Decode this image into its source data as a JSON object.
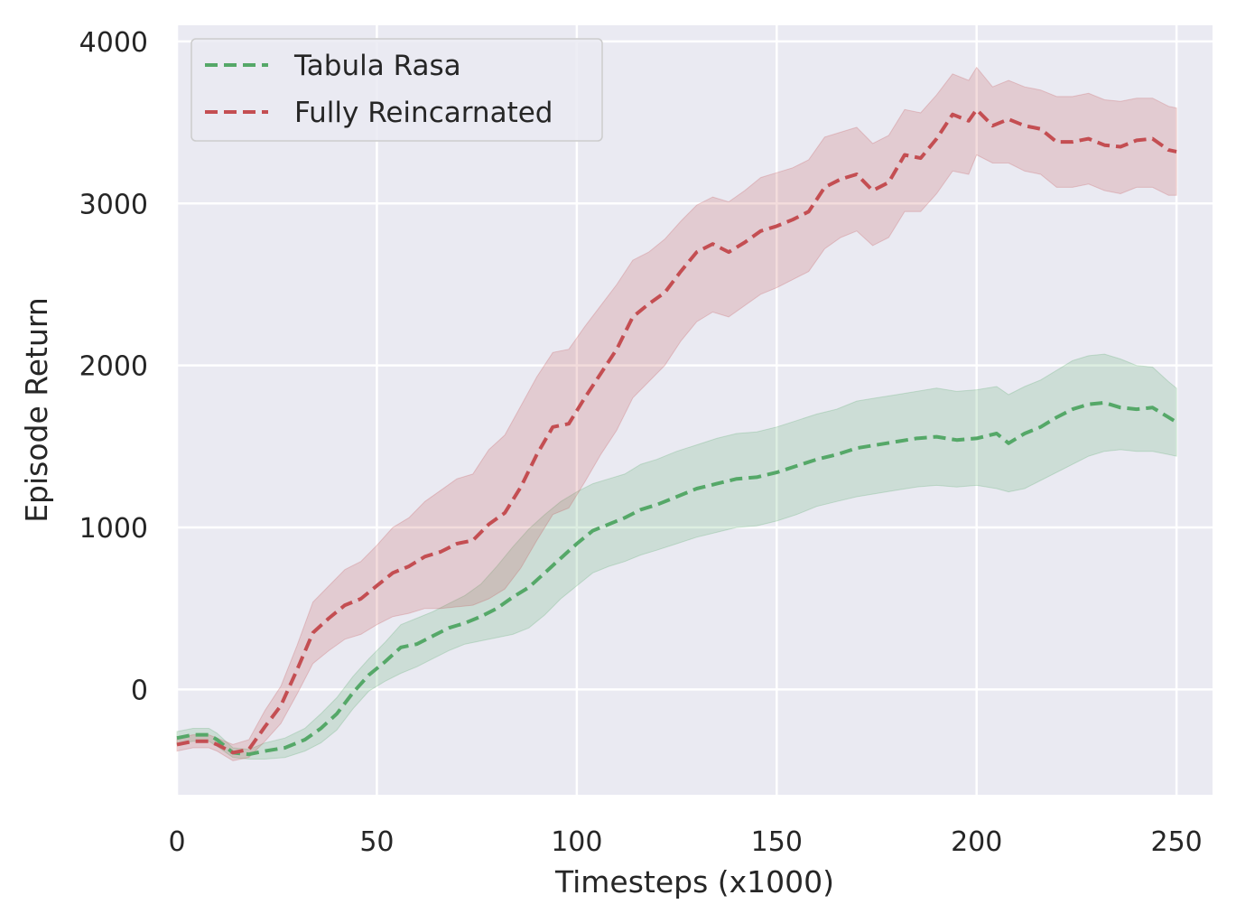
{
  "chart_data": {
    "type": "line",
    "xlabel": "Timesteps (x1000)",
    "ylabel": "Episode Return",
    "xlim": [
      0,
      259
    ],
    "ylim": [
      -650,
      4100
    ],
    "xticks": [
      0,
      50,
      100,
      150,
      200,
      250
    ],
    "yticks": [
      0,
      1000,
      2000,
      3000,
      4000
    ],
    "grid": true,
    "legend_position": "top-left",
    "background": "#eaeaf2",
    "series": [
      {
        "name": "Tabula Rasa",
        "color": "#55a868",
        "style": "dashed",
        "x": [
          0,
          4,
          8,
          10,
          14,
          18,
          22,
          27,
          32,
          36,
          40,
          44,
          48,
          52,
          56,
          60,
          64,
          68,
          72,
          76,
          80,
          84,
          88,
          92,
          96,
          100,
          104,
          108,
          112,
          116,
          120,
          125,
          130,
          135,
          140,
          145,
          150,
          155,
          160,
          165,
          170,
          175,
          180,
          185,
          190,
          195,
          200,
          205,
          208,
          212,
          216,
          220,
          224,
          228,
          232,
          236,
          240,
          244,
          248,
          250
        ],
        "mean": [
          -300,
          -280,
          -280,
          -310,
          -390,
          -400,
          -380,
          -360,
          -310,
          -240,
          -150,
          -20,
          90,
          170,
          260,
          280,
          330,
          380,
          410,
          450,
          500,
          570,
          630,
          720,
          810,
          900,
          980,
          1020,
          1060,
          1110,
          1140,
          1190,
          1240,
          1270,
          1300,
          1310,
          1340,
          1380,
          1420,
          1450,
          1490,
          1510,
          1530,
          1550,
          1560,
          1540,
          1550,
          1580,
          1520,
          1580,
          1620,
          1680,
          1730,
          1760,
          1770,
          1740,
          1730,
          1740,
          1680,
          1650
        ],
        "lower": [
          -340,
          -320,
          -320,
          -350,
          -420,
          -430,
          -430,
          -420,
          -380,
          -330,
          -250,
          -120,
          -10,
          50,
          100,
          140,
          190,
          240,
          280,
          300,
          320,
          340,
          380,
          460,
          560,
          640,
          720,
          760,
          790,
          830,
          860,
          900,
          940,
          970,
          1000,
          1010,
          1040,
          1080,
          1130,
          1160,
          1190,
          1210,
          1230,
          1250,
          1260,
          1250,
          1260,
          1240,
          1220,
          1240,
          1290,
          1340,
          1390,
          1440,
          1470,
          1480,
          1470,
          1470,
          1450,
          1440
        ],
        "upper": [
          -260,
          -240,
          -240,
          -270,
          -360,
          -370,
          -330,
          -300,
          -240,
          -150,
          -50,
          80,
          190,
          290,
          400,
          440,
          480,
          530,
          580,
          650,
          760,
          880,
          990,
          1080,
          1160,
          1220,
          1270,
          1300,
          1330,
          1390,
          1420,
          1470,
          1510,
          1550,
          1580,
          1590,
          1620,
          1660,
          1700,
          1730,
          1780,
          1800,
          1820,
          1840,
          1860,
          1840,
          1850,
          1870,
          1820,
          1870,
          1910,
          1970,
          2030,
          2060,
          2070,
          2040,
          2000,
          1990,
          1900,
          1860
        ]
      },
      {
        "name": "Fully Reincarnated",
        "color": "#c44e52",
        "style": "dashed",
        "x": [
          0,
          4,
          8,
          10,
          14,
          18,
          22,
          26,
          30,
          34,
          38,
          42,
          46,
          50,
          54,
          58,
          62,
          66,
          70,
          74,
          78,
          82,
          86,
          90,
          94,
          98,
          102,
          106,
          110,
          114,
          118,
          122,
          126,
          130,
          134,
          138,
          142,
          146,
          150,
          154,
          158,
          162,
          166,
          170,
          174,
          178,
          182,
          186,
          190,
          194,
          198,
          200,
          204,
          208,
          212,
          216,
          220,
          224,
          228,
          232,
          236,
          240,
          244,
          248,
          250
        ],
        "mean": [
          -340,
          -320,
          -320,
          -340,
          -390,
          -370,
          -230,
          -100,
          120,
          350,
          440,
          520,
          560,
          640,
          720,
          760,
          820,
          850,
          900,
          920,
          1020,
          1090,
          1250,
          1450,
          1620,
          1640,
          1800,
          1950,
          2100,
          2300,
          2380,
          2450,
          2580,
          2700,
          2750,
          2700,
          2760,
          2830,
          2860,
          2900,
          2950,
          3100,
          3150,
          3180,
          3080,
          3130,
          3300,
          3280,
          3400,
          3550,
          3510,
          3580,
          3480,
          3520,
          3480,
          3460,
          3380,
          3380,
          3400,
          3360,
          3350,
          3390,
          3400,
          3330,
          3320
        ],
        "lower": [
          -380,
          -360,
          -360,
          -380,
          -440,
          -420,
          -320,
          -210,
          -30,
          160,
          240,
          310,
          340,
          400,
          450,
          470,
          500,
          500,
          510,
          520,
          560,
          620,
          750,
          920,
          1080,
          1120,
          1280,
          1450,
          1600,
          1800,
          1900,
          2000,
          2150,
          2270,
          2330,
          2300,
          2370,
          2440,
          2480,
          2530,
          2580,
          2720,
          2790,
          2830,
          2740,
          2790,
          2950,
          2950,
          3060,
          3200,
          3180,
          3300,
          3250,
          3250,
          3200,
          3180,
          3100,
          3100,
          3120,
          3080,
          3060,
          3100,
          3100,
          3050,
          3050
        ],
        "upper": [
          -300,
          -280,
          -280,
          -300,
          -340,
          -310,
          -130,
          20,
          270,
          540,
          640,
          740,
          790,
          890,
          1000,
          1060,
          1160,
          1230,
          1300,
          1330,
          1480,
          1570,
          1750,
          1930,
          2080,
          2100,
          2240,
          2370,
          2500,
          2650,
          2700,
          2780,
          2890,
          2990,
          3040,
          3010,
          3080,
          3160,
          3190,
          3220,
          3270,
          3410,
          3440,
          3470,
          3370,
          3420,
          3580,
          3560,
          3670,
          3800,
          3760,
          3840,
          3720,
          3760,
          3720,
          3700,
          3660,
          3660,
          3680,
          3640,
          3630,
          3650,
          3650,
          3600,
          3590
        ]
      }
    ]
  }
}
